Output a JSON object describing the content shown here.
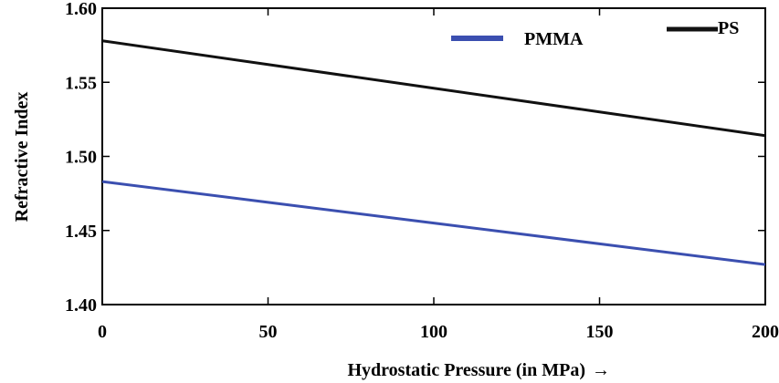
{
  "chart_data": {
    "type": "line",
    "title": "",
    "xlabel": "Hydrostatic Pressure (in MPa)",
    "xlabel_arrow": "→",
    "ylabel": "Refractive Index",
    "xlim": [
      0,
      200
    ],
    "ylim": [
      1.4,
      1.6
    ],
    "x_ticks": [
      0,
      50,
      100,
      150,
      200
    ],
    "y_ticks": [
      1.4,
      1.45,
      1.5,
      1.55,
      1.6
    ],
    "x_tick_labels": [
      "0",
      "50",
      "100",
      "150",
      "200"
    ],
    "y_tick_labels": [
      "1.40",
      "1.45",
      "1.50",
      "1.55",
      "1.60"
    ],
    "grid": false,
    "legend_placement": "top-right",
    "series": [
      {
        "name": "PMMA",
        "color": "#3b4fb0",
        "x": [
          0,
          50,
          100,
          150,
          200
        ],
        "y": [
          1.483,
          1.469,
          1.455,
          1.441,
          1.427
        ]
      },
      {
        "name": "PS",
        "color": "#111111",
        "x": [
          0,
          50,
          100,
          150,
          200
        ],
        "y": [
          1.578,
          1.562,
          1.546,
          1.53,
          1.514
        ]
      }
    ]
  }
}
